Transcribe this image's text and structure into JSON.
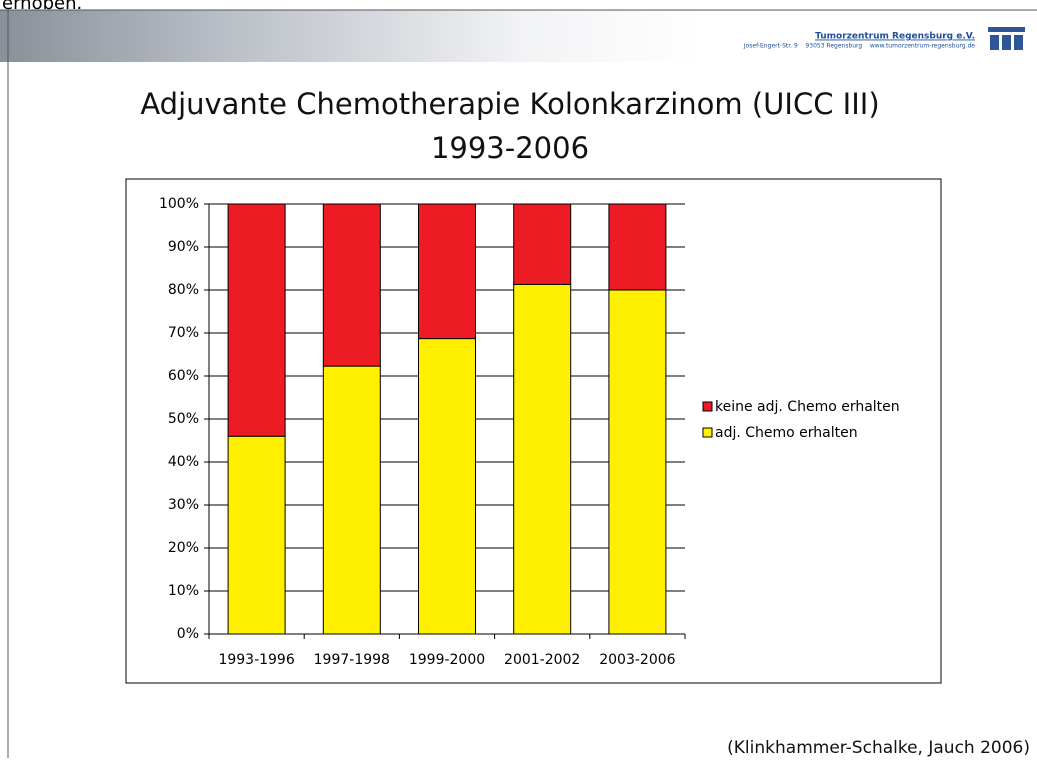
{
  "header": {
    "org": "Tumorzentrum Regensburg e.V.",
    "address": "Josef-Engert-Str. 9    93053 Regensburg    www.tumorzentrum-regensburg.de",
    "cropped_text": "erhoben."
  },
  "footer": {
    "source": "(Klinkhammer-Schalke, Jauch 2006)"
  },
  "chart_data": {
    "type": "stacked_bar",
    "title": [
      "Adjuvante Chemotherapie Kolonkarzinom (UICC III)",
      "1993-2006"
    ],
    "categories": [
      "1993-1996",
      "1997-1998",
      "1999-2000",
      "2001-2002",
      "2003-2006"
    ],
    "series": [
      {
        "name": "adj. Chemo erhalten",
        "color": "#ffef00",
        "values": [
          46,
          62.3,
          68.7,
          81.3,
          80
        ]
      },
      {
        "name": "keine adj. Chemo erhalten",
        "color": "#ed1c24",
        "values": [
          54,
          37.7,
          31.3,
          18.7,
          20
        ]
      }
    ],
    "ylim": [
      0,
      100
    ],
    "yticks": [
      {
        "value": 0,
        "label": "0%"
      },
      {
        "value": 10,
        "label": "10%"
      },
      {
        "value": 20,
        "label": "20%"
      },
      {
        "value": 30,
        "label": "30%"
      },
      {
        "value": 40,
        "label": "40%"
      },
      {
        "value": 50,
        "label": "50%"
      },
      {
        "value": 60,
        "label": "60%"
      },
      {
        "value": 70,
        "label": "70%"
      },
      {
        "value": 80,
        "label": "80%"
      },
      {
        "value": 90,
        "label": "90%"
      },
      {
        "value": 100,
        "label": "100%"
      }
    ],
    "grid": true,
    "legend": "right"
  }
}
